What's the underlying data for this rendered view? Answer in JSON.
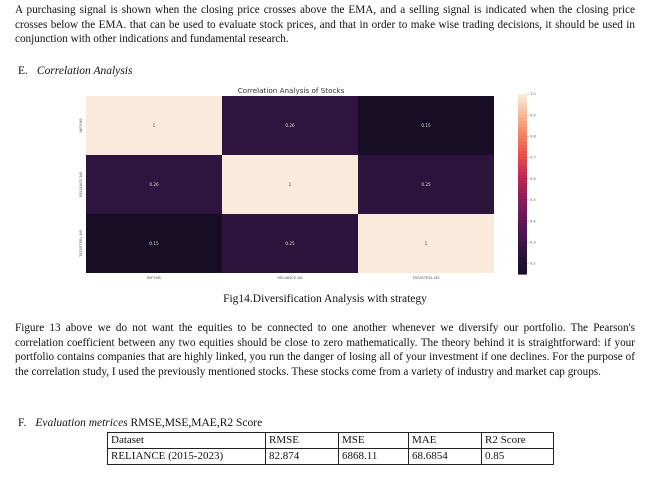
{
  "top_paragraph": "A purchasing signal is shown when the closing price crosses above the EMA, and a selling signal is indicated when the closing price crosses below the EMA. that can be used to evaluate stock prices, and that in order to make wise trading decisions, it should be used in conjunction with other indications and fundamental research.",
  "section_e": {
    "number": "E.",
    "title": "Correlation Analysis"
  },
  "chart_data": {
    "type": "heatmap",
    "title": "Correlation Analysis of Stocks",
    "row_labels": [
      "INFY.NS",
      "RELIANCE.NS",
      "TATASTEEL.NS"
    ],
    "col_labels": [
      "INFY.NS",
      "RELIANCE.NS",
      "TATASTEEL.NS"
    ],
    "values": [
      [
        1.0,
        0.26,
        0.15
      ],
      [
        0.26,
        1.0,
        0.25
      ],
      [
        0.15,
        0.25,
        1.0
      ]
    ],
    "cell_labels": [
      [
        "1",
        "0.26",
        "0.15"
      ],
      [
        "0.26",
        "1",
        "0.25"
      ],
      [
        "0.15",
        "0.25",
        "1"
      ]
    ],
    "colorbar": {
      "range": [
        0.15,
        1.0
      ],
      "ticks": [
        "1.0",
        "0.9",
        "0.8",
        "0.7",
        "0.6",
        "0.5",
        "0.4",
        "0.3",
        "0.2"
      ],
      "tick_values": [
        1.0,
        0.9,
        0.8,
        0.7,
        0.6,
        0.5,
        0.4,
        0.3,
        0.2
      ]
    },
    "colormap": "rocket"
  },
  "figure_caption": "Fig14.Diversification Analysis with strategy",
  "body_paragraph": "Figure 13 above we do not want the equities to be connected to one another whenever we diversify our portfolio. The Pearson's correlation coefficient between any two equities should be close to zero mathematically. The theory behind it is straightforward: if your portfolio contains companies that are highly linked, you run the danger of losing all of your investment if one declines. For the purpose of the correlation study, I used the previously mentioned stocks. These stocks come from a variety of industry and market cap groups.",
  "section_f": {
    "number": "F.",
    "title": "Evaluation metrices",
    "rest": "RMSE,MSE,MAE,R2 Score"
  },
  "metrics_table": {
    "headers": [
      "Dataset",
      "RMSE",
      "MSE",
      "MAE",
      "R2 Score"
    ],
    "rows": [
      [
        "RELIANCE (2015-2023)",
        "82.874",
        "6868.11",
        "68.6854",
        "0.85"
      ]
    ]
  }
}
